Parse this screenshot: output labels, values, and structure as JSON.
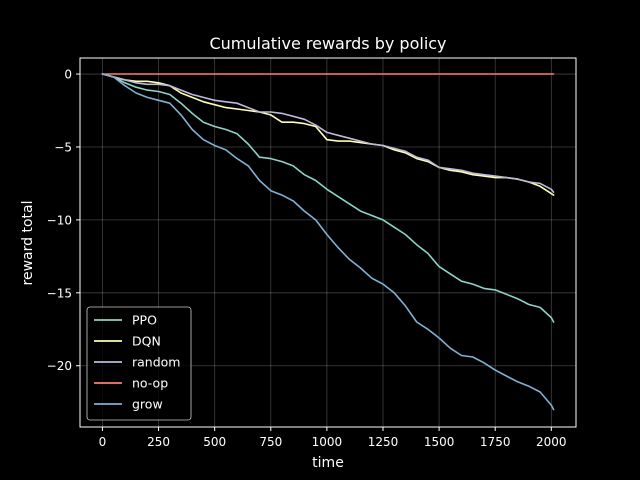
{
  "chart_data": {
    "type": "line",
    "title": "Cumulative rewards by policy",
    "xlabel": "time",
    "ylabel": "reward total",
    "xlim": [
      -100,
      2110
    ],
    "ylim": [
      -24.2,
      1.1
    ],
    "xticks": [
      0,
      250,
      500,
      750,
      1000,
      1250,
      1500,
      1750,
      2000
    ],
    "yticks": [
      0,
      -5,
      -10,
      -15,
      -20
    ],
    "grid": true,
    "legend_position": "lower-left",
    "background": "#000000",
    "series": [
      {
        "name": "PPO",
        "color": "#8dd3c7",
        "x": [
          0,
          50,
          100,
          150,
          200,
          250,
          300,
          350,
          400,
          450,
          500,
          550,
          600,
          650,
          700,
          750,
          800,
          850,
          900,
          950,
          1000,
          1050,
          1100,
          1150,
          1200,
          1250,
          1300,
          1350,
          1400,
          1450,
          1500,
          1550,
          1600,
          1650,
          1700,
          1750,
          1800,
          1850,
          1900,
          1950,
          2000,
          2010
        ],
        "y": [
          0,
          -0.2,
          -0.6,
          -0.9,
          -1.1,
          -1.2,
          -1.4,
          -2.0,
          -2.7,
          -3.3,
          -3.6,
          -3.8,
          -4.1,
          -4.8,
          -5.7,
          -5.8,
          -6.0,
          -6.3,
          -6.9,
          -7.3,
          -7.9,
          -8.4,
          -8.9,
          -9.4,
          -9.7,
          -10.0,
          -10.5,
          -11.0,
          -11.7,
          -12.3,
          -13.2,
          -13.7,
          -14.2,
          -14.4,
          -14.7,
          -14.8,
          -15.1,
          -15.4,
          -15.8,
          -16.0,
          -16.7,
          -17.0
        ]
      },
      {
        "name": "DQN",
        "color": "#ffffb3",
        "x": [
          0,
          50,
          100,
          150,
          200,
          250,
          300,
          350,
          400,
          450,
          500,
          550,
          600,
          650,
          700,
          750,
          800,
          850,
          900,
          950,
          1000,
          1050,
          1100,
          1150,
          1200,
          1250,
          1300,
          1350,
          1400,
          1450,
          1500,
          1550,
          1600,
          1650,
          1700,
          1750,
          1800,
          1850,
          1900,
          1950,
          2000,
          2010
        ],
        "y": [
          0,
          -0.2,
          -0.4,
          -0.5,
          -0.5,
          -0.6,
          -0.8,
          -1.3,
          -1.6,
          -1.9,
          -2.1,
          -2.3,
          -2.4,
          -2.5,
          -2.6,
          -2.8,
          -3.3,
          -3.3,
          -3.4,
          -3.6,
          -4.5,
          -4.6,
          -4.6,
          -4.7,
          -4.8,
          -4.9,
          -5.2,
          -5.4,
          -5.8,
          -6.0,
          -6.4,
          -6.6,
          -6.7,
          -6.9,
          -7.0,
          -7.1,
          -7.1,
          -7.2,
          -7.4,
          -7.7,
          -8.2,
          -8.3
        ]
      },
      {
        "name": "random",
        "color": "#bebada",
        "x": [
          0,
          50,
          100,
          150,
          200,
          250,
          300,
          350,
          400,
          450,
          500,
          550,
          600,
          650,
          700,
          750,
          800,
          850,
          900,
          950,
          1000,
          1050,
          1100,
          1150,
          1200,
          1250,
          1300,
          1350,
          1400,
          1450,
          1500,
          1550,
          1600,
          1650,
          1700,
          1750,
          1800,
          1850,
          1900,
          1950,
          2000,
          2010
        ],
        "y": [
          0,
          -0.2,
          -0.4,
          -0.6,
          -0.7,
          -0.7,
          -0.8,
          -1.1,
          -1.4,
          -1.6,
          -1.8,
          -1.9,
          -2.0,
          -2.3,
          -2.6,
          -2.6,
          -2.7,
          -2.9,
          -3.1,
          -3.5,
          -4.0,
          -4.2,
          -4.4,
          -4.6,
          -4.8,
          -4.9,
          -5.1,
          -5.3,
          -5.7,
          -5.9,
          -6.4,
          -6.5,
          -6.6,
          -6.8,
          -6.9,
          -7.0,
          -7.1,
          -7.2,
          -7.4,
          -7.5,
          -7.9,
          -8.1
        ]
      },
      {
        "name": "no-op",
        "color": "#fb8072",
        "x": [
          0,
          2010
        ],
        "y": [
          0,
          0
        ]
      },
      {
        "name": "grow",
        "color": "#80b1d3",
        "x": [
          0,
          50,
          100,
          150,
          200,
          250,
          300,
          350,
          400,
          450,
          500,
          550,
          600,
          650,
          700,
          750,
          800,
          850,
          900,
          950,
          1000,
          1050,
          1100,
          1150,
          1200,
          1250,
          1300,
          1350,
          1400,
          1450,
          1500,
          1550,
          1600,
          1650,
          1700,
          1750,
          1800,
          1850,
          1900,
          1950,
          2000,
          2010
        ],
        "y": [
          0,
          -0.2,
          -0.8,
          -1.3,
          -1.6,
          -1.8,
          -2.0,
          -2.8,
          -3.8,
          -4.5,
          -4.9,
          -5.2,
          -5.8,
          -6.3,
          -7.3,
          -8.0,
          -8.3,
          -8.7,
          -9.4,
          -10.0,
          -11.0,
          -11.9,
          -12.7,
          -13.3,
          -14.0,
          -14.4,
          -15.0,
          -15.9,
          -17.0,
          -17.5,
          -18.1,
          -18.8,
          -19.3,
          -19.4,
          -19.8,
          -20.3,
          -20.7,
          -21.1,
          -21.4,
          -21.8,
          -22.7,
          -23.0
        ]
      }
    ]
  }
}
